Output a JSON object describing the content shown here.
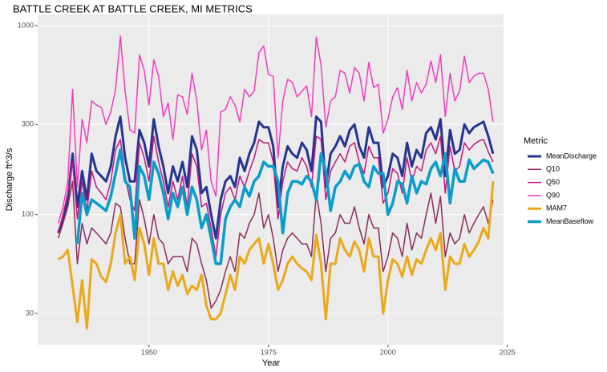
{
  "chart_data": {
    "type": "line",
    "title": "BATTLE CREEK AT BATTLE CREEK, MI  METRICS",
    "x_label": "Year",
    "y_label": "Discharge ft^3/s",
    "legend_title": "Metric",
    "legend": "right",
    "grid": true,
    "log_y": true,
    "xlim": [
      1926.7,
      2024.2
    ],
    "xticks": [
      1950,
      1975,
      2000,
      2025
    ],
    "ylim": [
      20.5,
      1146
    ],
    "yticks": [
      30,
      100,
      300,
      1000
    ],
    "x": [
      1931,
      1932,
      1933,
      1934,
      1935,
      1936,
      1937,
      1938,
      1939,
      1940,
      1941,
      1942,
      1943,
      1944,
      1945,
      1946,
      1947,
      1948,
      1949,
      1950,
      1951,
      1952,
      1953,
      1954,
      1955,
      1956,
      1957,
      1958,
      1959,
      1960,
      1961,
      1962,
      1963,
      1964,
      1965,
      1966,
      1967,
      1968,
      1969,
      1970,
      1971,
      1972,
      1973,
      1974,
      1975,
      1976,
      1977,
      1978,
      1979,
      1980,
      1981,
      1982,
      1983,
      1984,
      1985,
      1986,
      1987,
      1988,
      1989,
      1990,
      1991,
      1992,
      1993,
      1994,
      1995,
      1996,
      1997,
      1998,
      1999,
      2000,
      2001,
      2002,
      2003,
      2004,
      2005,
      2006,
      2007,
      2008,
      2009,
      2010,
      2011,
      2012,
      2013,
      2014,
      2015,
      2016,
      2017,
      2018,
      2019,
      2020,
      2021,
      2022
    ],
    "series": [
      {
        "name": "MeanDischarge",
        "color": "#26358f",
        "width": 3,
        "values": [
          80,
          95,
          120,
          210,
          110,
          170,
          120,
          210,
          170,
          160,
          150,
          180,
          260,
          330,
          200,
          150,
          150,
          280,
          240,
          180,
          320,
          230,
          180,
          130,
          180,
          150,
          190,
          140,
          260,
          220,
          130,
          140,
          100,
          75,
          120,
          150,
          160,
          140,
          200,
          170,
          210,
          240,
          310,
          290,
          290,
          230,
          110,
          180,
          230,
          210,
          200,
          240,
          220,
          170,
          330,
          310,
          140,
          210,
          230,
          260,
          230,
          280,
          300,
          230,
          200,
          290,
          240,
          240,
          140,
          160,
          210,
          200,
          160,
          240,
          180,
          220,
          200,
          270,
          290,
          250,
          320,
          160,
          280,
          210,
          220,
          300,
          270,
          290,
          300,
          310,
          260,
          210
        ]
      },
      {
        "name": "Q10",
        "color": "#8b2d5c",
        "width": 1.5,
        "values": [
          75,
          90,
          110,
          150,
          55,
          90,
          70,
          85,
          80,
          75,
          70,
          80,
          115,
          110,
          75,
          55,
          55,
          120,
          95,
          70,
          100,
          75,
          70,
          55,
          60,
          60,
          60,
          50,
          75,
          70,
          55,
          45,
          32,
          35,
          40,
          50,
          60,
          50,
          80,
          75,
          90,
          100,
          130,
          85,
          100,
          75,
          50,
          65,
          75,
          80,
          75,
          70,
          70,
          60,
          130,
          90,
          50,
          75,
          80,
          100,
          90,
          90,
          110,
          85,
          70,
          100,
          85,
          85,
          50,
          60,
          80,
          75,
          60,
          90,
          65,
          80,
          75,
          100,
          130,
          90,
          125,
          60,
          80,
          70,
          75,
          100,
          80,
          90,
          100,
          110,
          90,
          120
        ]
      },
      {
        "name": "Q50",
        "color": "#c2177f",
        "width": 1.5,
        "values": [
          80,
          100,
          130,
          190,
          95,
          150,
          105,
          170,
          140,
          130,
          120,
          150,
          220,
          250,
          160,
          120,
          105,
          240,
          200,
          150,
          260,
          190,
          150,
          110,
          150,
          120,
          160,
          110,
          210,
          180,
          110,
          115,
          85,
          60,
          100,
          130,
          140,
          120,
          160,
          140,
          170,
          200,
          250,
          240,
          240,
          190,
          95,
          150,
          190,
          175,
          170,
          200,
          180,
          140,
          260,
          250,
          120,
          170,
          190,
          210,
          190,
          230,
          240,
          190,
          165,
          230,
          200,
          200,
          115,
          130,
          175,
          165,
          130,
          200,
          150,
          180,
          170,
          220,
          240,
          210,
          260,
          130,
          230,
          170,
          180,
          240,
          220,
          235,
          245,
          250,
          215,
          190
        ]
      },
      {
        "name": "Q90",
        "color": "#f53cbf",
        "width": 1.5,
        "values": [
          90,
          110,
          150,
          460,
          140,
          320,
          240,
          400,
          380,
          370,
          300,
          350,
          460,
          880,
          450,
          280,
          270,
          700,
          580,
          380,
          660,
          540,
          330,
          390,
          250,
          430,
          420,
          340,
          560,
          400,
          220,
          280,
          150,
          125,
          350,
          360,
          420,
          380,
          310,
          460,
          420,
          450,
          720,
          780,
          550,
          540,
          200,
          400,
          520,
          500,
          420,
          450,
          480,
          330,
          870,
          620,
          290,
          400,
          420,
          580,
          560,
          440,
          600,
          560,
          400,
          640,
          470,
          490,
          270,
          320,
          420,
          470,
          360,
          580,
          400,
          500,
          440,
          490,
          650,
          500,
          700,
          330,
          560,
          400,
          450,
          690,
          500,
          540,
          560,
          560,
          460,
          310
        ]
      },
      {
        "name": "MAM7",
        "color": "#eaa91b",
        "width": 3,
        "values": [
          58,
          60,
          65,
          42,
          27,
          45,
          25,
          58,
          55,
          47,
          44,
          55,
          80,
          100,
          55,
          60,
          45,
          85,
          70,
          48,
          75,
          55,
          55,
          40,
          50,
          42,
          48,
          38,
          42,
          40,
          48,
          33,
          28,
          28,
          30,
          38,
          48,
          40,
          60,
          55,
          65,
          70,
          75,
          55,
          70,
          55,
          40,
          45,
          55,
          60,
          55,
          52,
          50,
          45,
          78,
          55,
          28,
          55,
          55,
          75,
          65,
          60,
          72,
          65,
          50,
          75,
          60,
          60,
          30,
          45,
          58,
          55,
          47,
          60,
          48,
          58,
          55,
          65,
          75,
          65,
          80,
          40,
          60,
          55,
          55,
          70,
          60,
          65,
          72,
          85,
          75,
          150
        ]
      },
      {
        "name": "MeanBaseflow",
        "color": "#0b9dca",
        "width": 3.5,
        "values": [
          null,
          null,
          null,
          null,
          70,
          130,
          100,
          120,
          115,
          110,
          105,
          125,
          165,
          220,
          150,
          140,
          75,
          180,
          160,
          120,
          190,
          165,
          130,
          95,
          130,
          110,
          140,
          100,
          140,
          120,
          85,
          100,
          75,
          55,
          55,
          95,
          110,
          120,
          110,
          140,
          125,
          150,
          160,
          190,
          180,
          180,
          150,
          80,
          130,
          150,
          150,
          145,
          160,
          150,
          120,
          210,
          170,
          105,
          140,
          150,
          170,
          155,
          180,
          185,
          150,
          140,
          180,
          165,
          165,
          100,
          115,
          150,
          145,
          115,
          160,
          130,
          150,
          145,
          175,
          190,
          160,
          210,
          115,
          175,
          150,
          150,
          195,
          175,
          185,
          195,
          190,
          165
        ]
      }
    ]
  }
}
